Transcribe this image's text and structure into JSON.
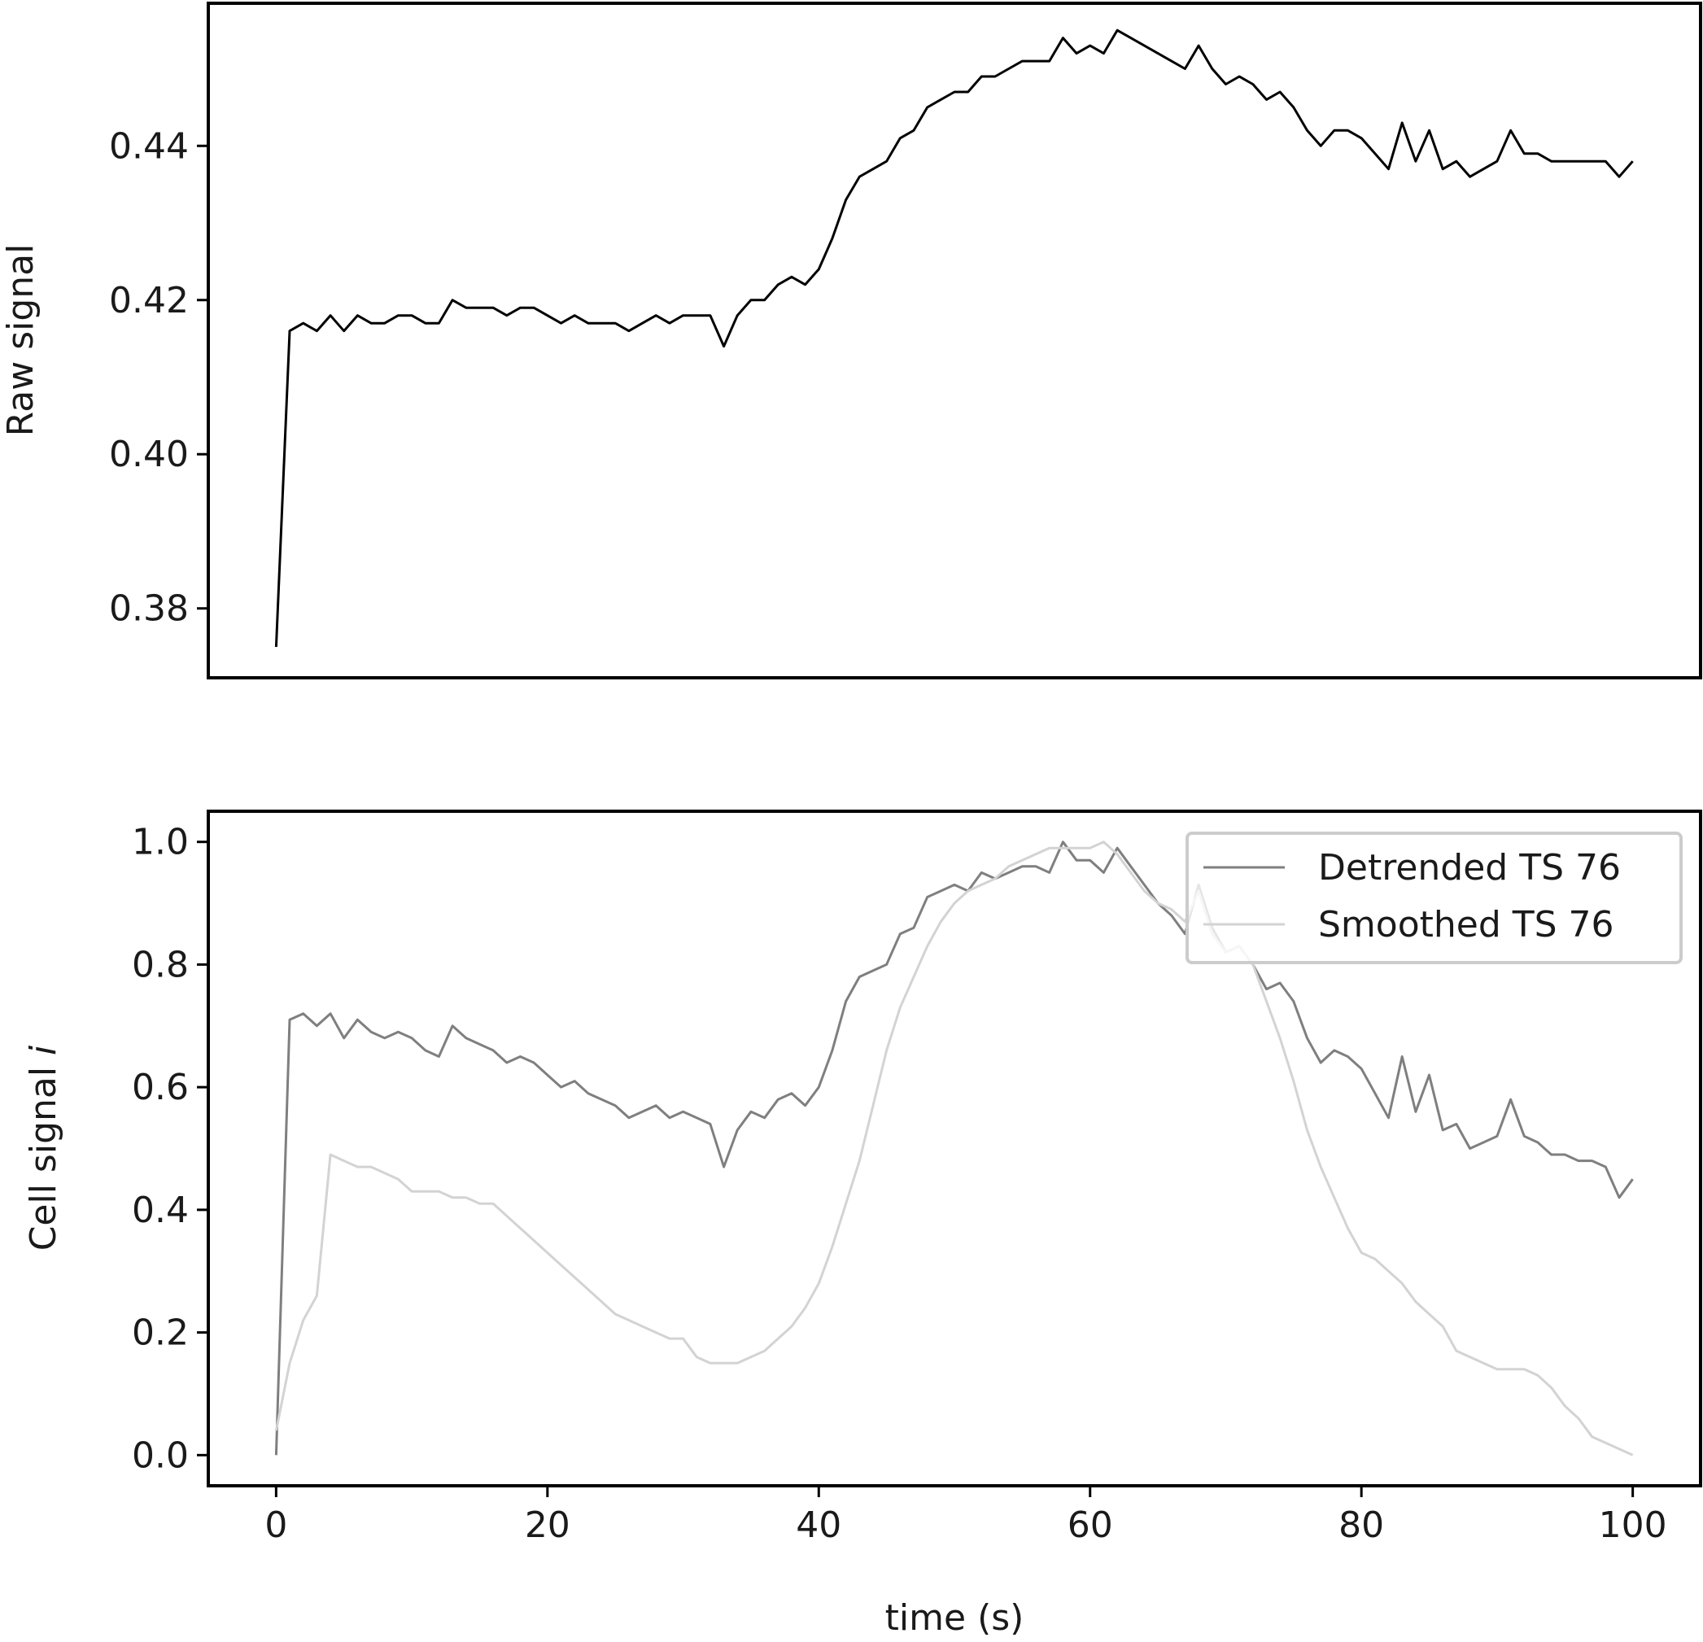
{
  "chart_data": [
    {
      "type": "line",
      "ylabel": "Raw signal",
      "xlim": [
        -5,
        105
      ],
      "ylim": [
        0.371,
        0.4585
      ],
      "xticks": [],
      "yticks": [
        0.38,
        0.4,
        0.42,
        0.44
      ],
      "ytick_labels": [
        "0.38",
        "0.40",
        "0.42",
        "0.44"
      ],
      "grid": false,
      "series": [
        {
          "color": "#000000",
          "x": [
            0,
            1,
            2,
            3,
            4,
            5,
            6,
            7,
            8,
            9,
            10,
            11,
            12,
            13,
            14,
            15,
            16,
            17,
            18,
            19,
            20,
            21,
            22,
            23,
            24,
            25,
            26,
            27,
            28,
            29,
            30,
            31,
            32,
            33,
            34,
            35,
            36,
            37,
            38,
            39,
            40,
            41,
            42,
            43,
            44,
            45,
            46,
            47,
            48,
            49,
            50,
            51,
            52,
            53,
            54,
            55,
            56,
            57,
            58,
            59,
            60,
            61,
            62,
            63,
            64,
            65,
            66,
            67,
            68,
            69,
            70,
            71,
            72,
            73,
            74,
            75,
            76,
            77,
            78,
            79,
            80,
            81,
            82,
            83,
            84,
            85,
            86,
            87,
            88,
            89,
            90,
            91,
            92,
            93,
            94,
            95,
            96,
            97,
            98,
            99,
            100
          ],
          "y": [
            0.375,
            0.416,
            0.417,
            0.416,
            0.418,
            0.416,
            0.418,
            0.417,
            0.417,
            0.418,
            0.418,
            0.417,
            0.417,
            0.42,
            0.419,
            0.419,
            0.419,
            0.418,
            0.419,
            0.419,
            0.418,
            0.417,
            0.418,
            0.417,
            0.417,
            0.417,
            0.416,
            0.417,
            0.418,
            0.417,
            0.418,
            0.418,
            0.418,
            0.414,
            0.418,
            0.42,
            0.42,
            0.422,
            0.423,
            0.422,
            0.424,
            0.428,
            0.433,
            0.436,
            0.437,
            0.438,
            0.441,
            0.442,
            0.445,
            0.446,
            0.447,
            0.447,
            0.449,
            0.449,
            0.45,
            0.451,
            0.451,
            0.451,
            0.454,
            0.452,
            0.453,
            0.452,
            0.455,
            0.454,
            0.453,
            0.452,
            0.451,
            0.45,
            0.453,
            0.45,
            0.448,
            0.449,
            0.448,
            0.446,
            0.447,
            0.445,
            0.442,
            0.44,
            0.442,
            0.442,
            0.441,
            0.439,
            0.437,
            0.443,
            0.438,
            0.442,
            0.437,
            0.438,
            0.436,
            0.437,
            0.438,
            0.442,
            0.439,
            0.439,
            0.438,
            0.438,
            0.438,
            0.438,
            0.438,
            0.436,
            0.438
          ]
        }
      ]
    },
    {
      "type": "line",
      "xlabel": "time (s)",
      "ylabel": "Cell signal ",
      "ylabel_italic": "i",
      "xlim": [
        -5,
        105
      ],
      "ylim": [
        -0.05,
        1.05
      ],
      "xticks": [
        0,
        20,
        40,
        60,
        80,
        100
      ],
      "xtick_labels": [
        "0",
        "20",
        "40",
        "60",
        "80",
        "100"
      ],
      "yticks": [
        0.0,
        0.2,
        0.4,
        0.6,
        0.8,
        1.0
      ],
      "ytick_labels": [
        "0.0",
        "0.2",
        "0.4",
        "0.6",
        "0.8",
        "1.0"
      ],
      "grid": false,
      "legend_position": "top-right",
      "series": [
        {
          "name": "Detrended TS 76",
          "color": "#7f7f7f",
          "x": [
            0,
            1,
            2,
            3,
            4,
            5,
            6,
            7,
            8,
            9,
            10,
            11,
            12,
            13,
            14,
            15,
            16,
            17,
            18,
            19,
            20,
            21,
            22,
            23,
            24,
            25,
            26,
            27,
            28,
            29,
            30,
            31,
            32,
            33,
            34,
            35,
            36,
            37,
            38,
            39,
            40,
            41,
            42,
            43,
            44,
            45,
            46,
            47,
            48,
            49,
            50,
            51,
            52,
            53,
            54,
            55,
            56,
            57,
            58,
            59,
            60,
            61,
            62,
            63,
            64,
            65,
            66,
            67,
            68,
            69,
            70,
            71,
            72,
            73,
            74,
            75,
            76,
            77,
            78,
            79,
            80,
            81,
            82,
            83,
            84,
            85,
            86,
            87,
            88,
            89,
            90,
            91,
            92,
            93,
            94,
            95,
            96,
            97,
            98,
            99,
            100
          ],
          "y": [
            0.0,
            0.71,
            0.72,
            0.7,
            0.72,
            0.68,
            0.71,
            0.69,
            0.68,
            0.69,
            0.68,
            0.66,
            0.65,
            0.7,
            0.68,
            0.67,
            0.66,
            0.64,
            0.65,
            0.64,
            0.62,
            0.6,
            0.61,
            0.59,
            0.58,
            0.57,
            0.55,
            0.56,
            0.57,
            0.55,
            0.56,
            0.55,
            0.54,
            0.47,
            0.53,
            0.56,
            0.55,
            0.58,
            0.59,
            0.57,
            0.6,
            0.66,
            0.74,
            0.78,
            0.79,
            0.8,
            0.85,
            0.86,
            0.91,
            0.92,
            0.93,
            0.92,
            0.95,
            0.94,
            0.95,
            0.96,
            0.96,
            0.95,
            1.0,
            0.97,
            0.97,
            0.95,
            0.99,
            0.96,
            0.93,
            0.9,
            0.88,
            0.85,
            0.93,
            0.86,
            0.82,
            0.83,
            0.8,
            0.76,
            0.77,
            0.74,
            0.68,
            0.64,
            0.66,
            0.65,
            0.63,
            0.59,
            0.55,
            0.65,
            0.56,
            0.62,
            0.53,
            0.54,
            0.5,
            0.51,
            0.52,
            0.58,
            0.52,
            0.51,
            0.49,
            0.49,
            0.48,
            0.48,
            0.47,
            0.42,
            0.45
          ]
        },
        {
          "name": "Smoothed TS 76",
          "color": "#d3d3d3",
          "x": [
            0,
            1,
            2,
            3,
            4,
            5,
            6,
            7,
            8,
            9,
            10,
            11,
            12,
            13,
            14,
            15,
            16,
            17,
            18,
            19,
            20,
            21,
            22,
            23,
            24,
            25,
            26,
            27,
            28,
            29,
            30,
            31,
            32,
            33,
            34,
            35,
            36,
            37,
            38,
            39,
            40,
            41,
            42,
            43,
            44,
            45,
            46,
            47,
            48,
            49,
            50,
            51,
            52,
            53,
            54,
            55,
            56,
            57,
            58,
            59,
            60,
            61,
            62,
            63,
            64,
            65,
            66,
            67,
            68,
            69,
            70,
            71,
            72,
            73,
            74,
            75,
            76,
            77,
            78,
            79,
            80,
            81,
            82,
            83,
            84,
            85,
            86,
            87,
            88,
            89,
            90,
            91,
            92,
            93,
            94,
            95,
            96,
            97,
            98,
            99,
            100
          ],
          "y": [
            0.04,
            0.15,
            0.22,
            0.26,
            0.49,
            0.48,
            0.47,
            0.47,
            0.46,
            0.45,
            0.43,
            0.43,
            0.43,
            0.42,
            0.42,
            0.41,
            0.41,
            0.39,
            0.37,
            0.35,
            0.33,
            0.31,
            0.29,
            0.27,
            0.25,
            0.23,
            0.22,
            0.21,
            0.2,
            0.19,
            0.19,
            0.16,
            0.15,
            0.15,
            0.15,
            0.16,
            0.17,
            0.19,
            0.21,
            0.24,
            0.28,
            0.34,
            0.41,
            0.48,
            0.57,
            0.66,
            0.73,
            0.78,
            0.83,
            0.87,
            0.9,
            0.92,
            0.93,
            0.94,
            0.96,
            0.97,
            0.98,
            0.99,
            0.99,
            0.99,
            0.99,
            1.0,
            0.98,
            0.95,
            0.92,
            0.9,
            0.89,
            0.87,
            0.92,
            0.85,
            0.82,
            0.83,
            0.8,
            0.74,
            0.68,
            0.61,
            0.53,
            0.47,
            0.42,
            0.37,
            0.33,
            0.32,
            0.3,
            0.28,
            0.25,
            0.23,
            0.21,
            0.17,
            0.16,
            0.15,
            0.14,
            0.14,
            0.14,
            0.13,
            0.11,
            0.08,
            0.06,
            0.03,
            0.02,
            0.01,
            0.0
          ]
        }
      ]
    }
  ]
}
